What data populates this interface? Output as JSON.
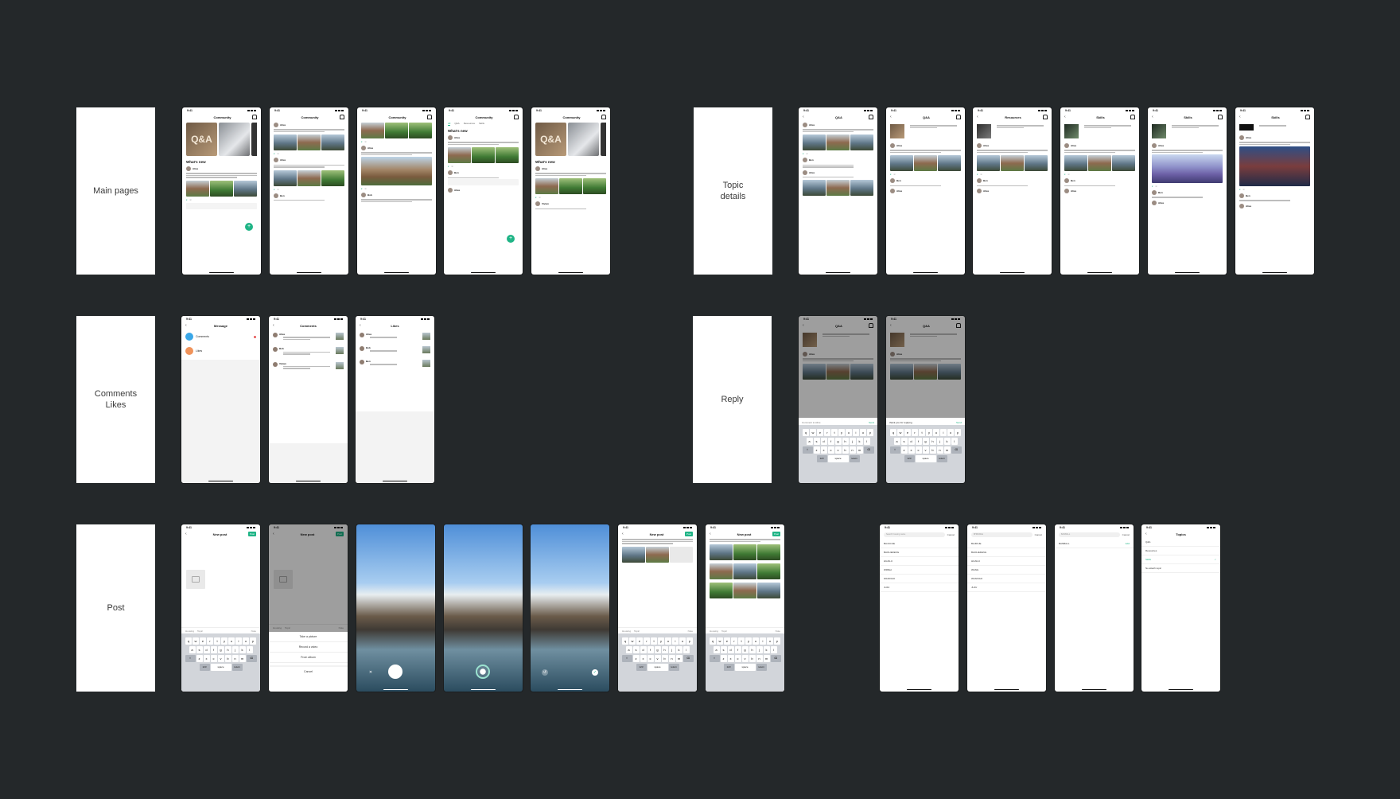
{
  "sections": {
    "main_pages": "Main pages",
    "topic_details": "Topic\ndetails",
    "comments_likes": "Comments\nLikes",
    "reply": "Reply",
    "post": "Post"
  },
  "common": {
    "time": "9:41",
    "community": "Community",
    "whats_new": "What's new",
    "whats_new_alt": "What's new",
    "user_alice": "Alice",
    "user_bob": "Bob",
    "user_ben": "Ben",
    "user_vivian": "Vivian",
    "qa_title": "Q&A",
    "qa_hero": "Q&A",
    "resources_title": "Resources",
    "skills_title": "Skills",
    "message_title": "Message",
    "comments_title": "Comments",
    "likes_title": "Likes",
    "new_post": "New post",
    "topics_title": "Topics",
    "post_btn": "Post",
    "cancel": "Cancel",
    "add": "Add"
  },
  "tabs": [
    "All",
    "Q&A",
    "Resources",
    "Skills"
  ],
  "message_items": [
    "Comments",
    "Likes"
  ],
  "sheet_options": [
    "Take a picture",
    "Record a video",
    "From album",
    "Cancel"
  ],
  "toolbar": [
    "Housing",
    "Topic",
    "Note"
  ],
  "topic_list": [
    "Q&A",
    "Resources",
    "Skills",
    "No attach topic"
  ],
  "search_list": [
    "BAJUCUE",
    "BAOLIEFENG",
    "HUAILU",
    "WIPELI",
    "WANXIAO",
    "JUJU"
  ],
  "search_list_b": [
    "BAJIKUE",
    "BAOLIEFENG",
    "HUAILU",
    "WANG",
    "WANXIAO",
    "JUJU"
  ],
  "search_query_a": "Search housing name",
  "search_query_b": "BHIMIMLE",
  "search_query_c": "BANBALL",
  "search_result_c": "BANBALL",
  "keyboard": {
    "row1": [
      "q",
      "w",
      "e",
      "r",
      "t",
      "y",
      "u",
      "i",
      "o",
      "p"
    ],
    "row2": [
      "a",
      "s",
      "d",
      "f",
      "g",
      "h",
      "j",
      "k",
      "l"
    ],
    "row3": [
      "z",
      "x",
      "c",
      "v",
      "b",
      "n",
      "m"
    ],
    "space": "space",
    "return": "return"
  },
  "reply": {
    "placeholder": "Comment to Alice",
    "typed": "thank you for replying",
    "send": "Send"
  },
  "colors": {
    "accent": "#1fb486",
    "background": "#24282a"
  }
}
